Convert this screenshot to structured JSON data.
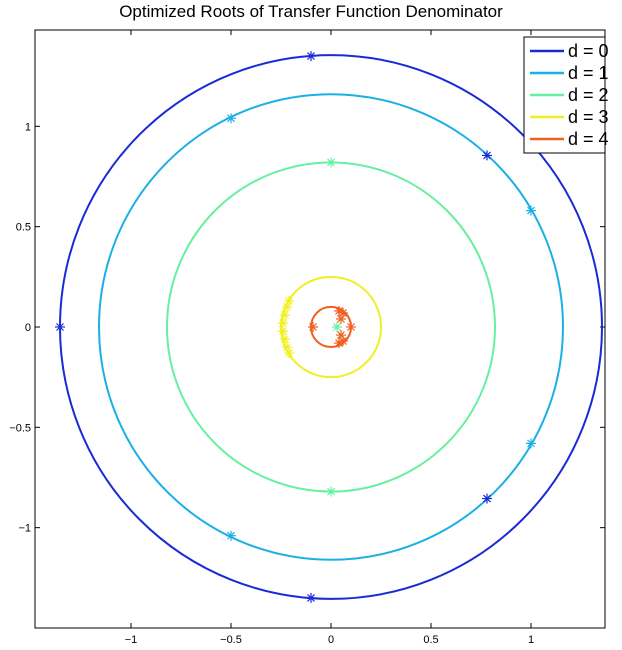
{
  "chart_data": {
    "type": "scatter",
    "title": "Optimized Roots of Transfer Function Denominator",
    "xlabel": "",
    "ylabel": "",
    "xlim": [
      -1.48,
      1.37
    ],
    "ylim": [
      -1.5,
      1.48
    ],
    "x_ticks": [
      -1,
      -0.5,
      0,
      0.5,
      1
    ],
    "x_tick_labels": [
      "−1",
      "−0.5",
      "0",
      "0.5",
      "1"
    ],
    "y_ticks": [
      1,
      0.5,
      0,
      -0.5,
      -1
    ],
    "y_tick_labels": [
      "1",
      "0.5",
      "0",
      "−0.5",
      "−1"
    ],
    "grid": false,
    "legend_position": "top-right",
    "series": [
      {
        "name": "d = 0",
        "color": "#1a2ad6",
        "circle_radius": 1.355,
        "points": [
          [
            -0.1,
            1.35
          ],
          [
            0.78,
            0.855
          ],
          [
            -1.355,
            0.0
          ],
          [
            0.78,
            -0.855
          ],
          [
            -0.1,
            -1.35
          ]
        ]
      },
      {
        "name": "d = 1",
        "color": "#1ab0e6",
        "circle_radius": 1.16,
        "points": [
          [
            -0.5,
            1.04
          ],
          [
            1.0,
            0.58
          ],
          [
            1.0,
            -0.58
          ],
          [
            -0.5,
            -1.04
          ]
        ]
      },
      {
        "name": "d = 2",
        "color": "#66f0a0",
        "circle_radius": 0.82,
        "points": [
          [
            0.0,
            0.82
          ],
          [
            0.0,
            -0.82
          ],
          [
            0.03,
            0.0
          ]
        ]
      },
      {
        "name": "d = 3",
        "color": "#f0f020",
        "circle_radius": 0.25,
        "points": [
          [
            -0.21,
            0.13
          ],
          [
            -0.22,
            0.1
          ],
          [
            -0.23,
            0.06
          ],
          [
            -0.24,
            0.02
          ],
          [
            -0.24,
            -0.02
          ],
          [
            -0.23,
            -0.06
          ],
          [
            -0.22,
            -0.1
          ],
          [
            -0.21,
            -0.13
          ]
        ]
      },
      {
        "name": "d = 4",
        "color": "#f06020",
        "circle_radius": 0.1,
        "points": [
          [
            0.04,
            0.08
          ],
          [
            0.06,
            0.07
          ],
          [
            -0.09,
            0.0
          ],
          [
            0.1,
            0.0
          ],
          [
            0.04,
            -0.08
          ],
          [
            0.06,
            -0.07
          ],
          [
            0.05,
            0.04
          ],
          [
            0.05,
            -0.04
          ]
        ]
      }
    ]
  }
}
